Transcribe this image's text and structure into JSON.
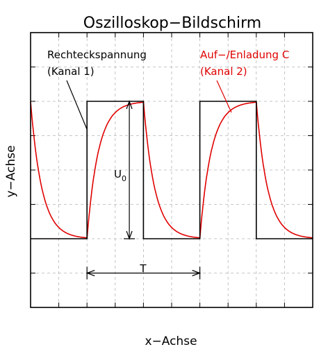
{
  "chart_data": {
    "type": "line",
    "title": "Oszilloskop−Bildschirm",
    "xlabel": "x−Achse",
    "ylabel": "y−Achse",
    "xlim": [
      0,
      10
    ],
    "ylim": [
      0,
      8
    ],
    "grid": true,
    "grid_divisions": {
      "x": 10,
      "y": 8
    },
    "colors": {
      "channel1": "#000000",
      "channel2": "#e00000",
      "grid": "#b4b4b4",
      "frame": "#000000"
    },
    "series": [
      {
        "name": "Rechteckspannung (Kanal 1)",
        "color": "#000000",
        "shape": "square",
        "low": 2,
        "high": 6,
        "edges_x": [
          2,
          4,
          6,
          8
        ]
      },
      {
        "name": "Auf−/Enladung C (Kanal 2)",
        "color": "#e00000",
        "shape": "rc-exponential",
        "low": 2,
        "high": 6,
        "edges_x": [
          2,
          4,
          6,
          8
        ],
        "time_constant": 0.4
      }
    ],
    "annotations": {
      "ch1_label": [
        "Rechteckspannung",
        "(Kanal 1)"
      ],
      "ch2_label": [
        "Auf−/Enladung C",
        "(Kanal 2)"
      ],
      "amplitude_label": "U",
      "amplitude_subscript": "0",
      "period_label": "T",
      "period_x": [
        2,
        6
      ],
      "period_y": 1,
      "amplitude_x": 3.5,
      "amplitude_y": [
        2,
        6
      ]
    }
  }
}
